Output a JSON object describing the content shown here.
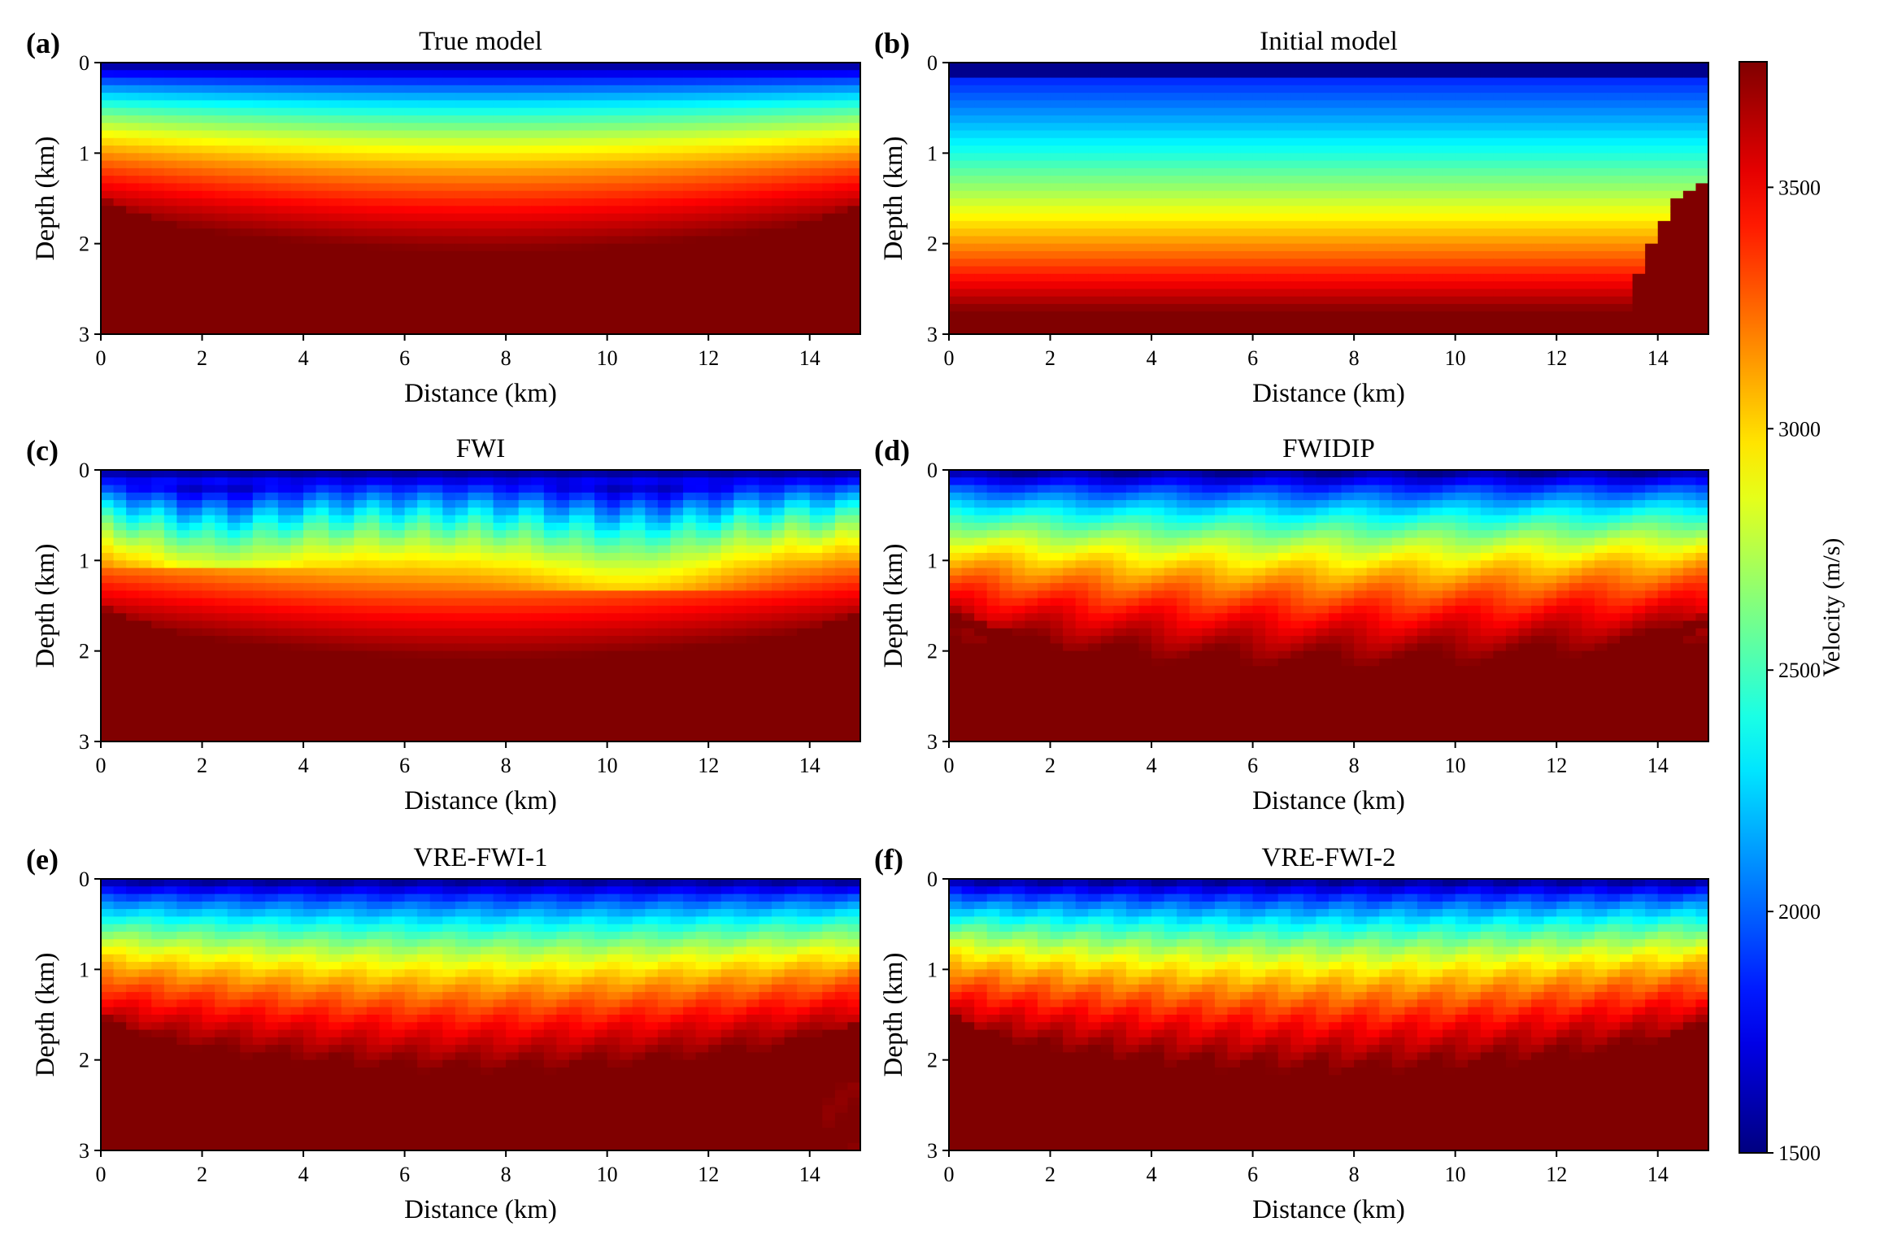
{
  "chart_data": {
    "type": "heatmap",
    "colormap": "jet",
    "x_range": [
      0,
      15
    ],
    "y_range": [
      0,
      3
    ],
    "x_ticks": [
      0,
      2,
      4,
      6,
      8,
      10,
      12,
      14
    ],
    "y_ticks": [
      0,
      1,
      2,
      3
    ],
    "xlabel": "Distance (km)",
    "ylabel": "Depth (km)",
    "colorbar": {
      "label": "Velocity (m/s)",
      "range": [
        1500,
        3760
      ],
      "ticks": [
        1500,
        2000,
        2500,
        3000,
        3500
      ]
    },
    "panels": [
      {
        "letter": "(a)",
        "title": "True model",
        "style": "true"
      },
      {
        "letter": "(b)",
        "title": "Initial model",
        "style": "initial"
      },
      {
        "letter": "(c)",
        "title": "FWI",
        "style": "fwi"
      },
      {
        "letter": "(d)",
        "title": "FWIDIP",
        "style": "fwidip"
      },
      {
        "letter": "(e)",
        "title": "VRE-FWI-1",
        "style": "vre1"
      },
      {
        "letter": "(f)",
        "title": "VRE-FWI-2",
        "style": "vre2"
      }
    ]
  }
}
